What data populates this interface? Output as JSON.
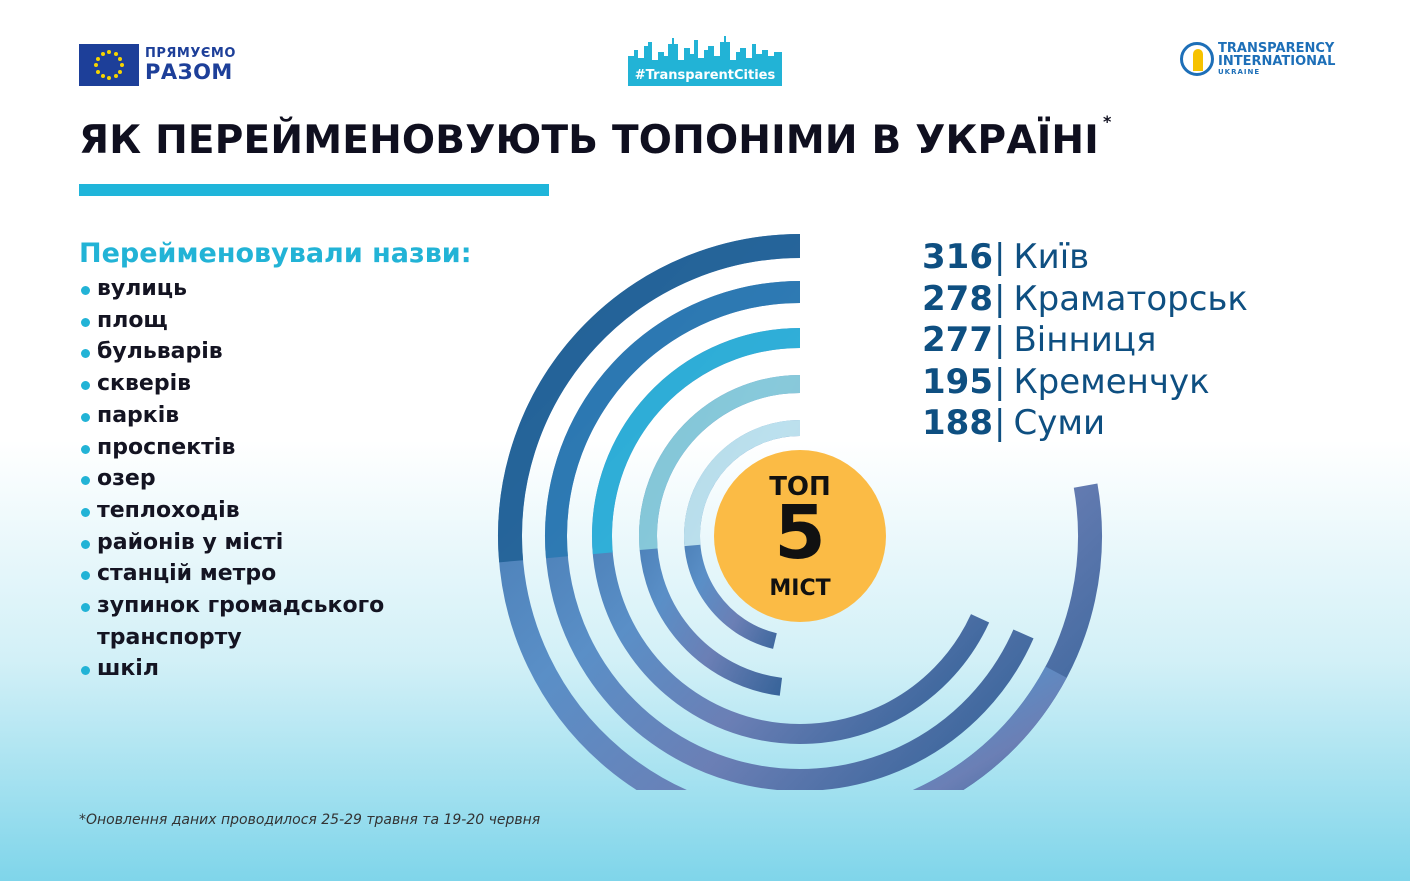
{
  "header": {
    "eu_logo": {
      "line1": "ПРЯМУЄМО",
      "line2": "РАЗОМ",
      "color": "#1d3f99"
    },
    "tc_logo": {
      "tag": "#TransparentCities",
      "color": "#22b3d6"
    },
    "ti_logo": {
      "line1": "TRANSPARENCY",
      "line2": "INTERNATIONAL",
      "line3": "UKRAINE",
      "color": "#1d6fb8"
    }
  },
  "title": {
    "text": "ЯК ПЕРЕЙМЕНОВУЮТЬ ТОПОНІМИ В УКРАЇНІ",
    "mark": "*"
  },
  "list": {
    "heading": "Перейменовували назви:",
    "items": [
      "вулиць",
      "площ",
      "бульварів",
      "скверів",
      "парків",
      "проспектів",
      "озер",
      "теплоходів",
      "районів у місті",
      "станцій метро",
      "зупинок громадського транспорту",
      "шкіл"
    ]
  },
  "badge": {
    "top": "ТОП",
    "number": "5",
    "bottom": "МІСТ",
    "color": "#fbbb45"
  },
  "chart_data": {
    "type": "radial-bar",
    "title": "",
    "categories": [
      "Київ",
      "Краматорськ",
      "Вінниця",
      "Кременчук",
      "Суми"
    ],
    "values": [
      316,
      278,
      277,
      195,
      188
    ],
    "value_max": 316,
    "colors": [
      "#1f5f94",
      "#2878b2",
      "#2ab6dd",
      "#8fd3de",
      "#cdeef4"
    ]
  },
  "footnote": "*Оновлення даних проводилося 25-29 травня та 19-20 червня"
}
